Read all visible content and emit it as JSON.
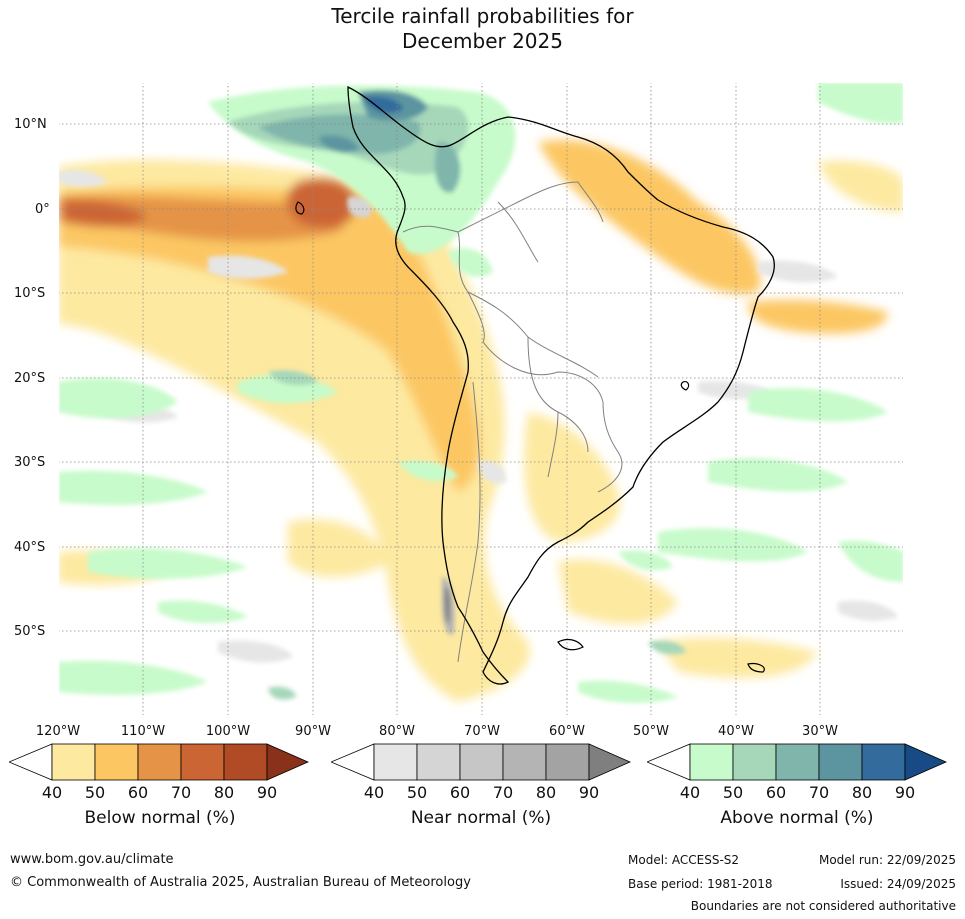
{
  "title": {
    "line1": "Tercile rainfall probabilities for",
    "line2": "December 2025"
  },
  "map": {
    "lat_labels": [
      "10°N",
      "0°",
      "10°S",
      "20°S",
      "30°S",
      "40°S",
      "50°S"
    ],
    "lon_labels": [
      "120°W",
      "110°W",
      "100°W",
      "90°W",
      "80°W",
      "70°W",
      "60°W",
      "50°W",
      "40°W",
      "30°W"
    ],
    "colors": {
      "below": [
        "#fde9a0",
        "#fcc763",
        "#e59447",
        "#cc6534",
        "#b04b26",
        "#8a311b"
      ],
      "near": [
        "#e6e6e6",
        "#d5d5d5",
        "#c6c6c6",
        "#b4b4b4",
        "#a3a3a3",
        "#7f7f7f"
      ],
      "above": [
        "#c8fbcb",
        "#a6d7b9",
        "#7fb5ab",
        "#5c95a0",
        "#336c9c",
        "#184a85"
      ],
      "gridline": "#888888",
      "coastline": "#000000",
      "border": "#808080"
    }
  },
  "colorbars": {
    "below": {
      "title": "Below normal (%)",
      "ticks": [
        "40",
        "50",
        "60",
        "70",
        "80",
        "90"
      ]
    },
    "near": {
      "title": "Near normal (%)",
      "ticks": [
        "40",
        "50",
        "60",
        "70",
        "80",
        "90"
      ]
    },
    "above": {
      "title": "Above normal (%)",
      "ticks": [
        "40",
        "50",
        "60",
        "70",
        "80",
        "90"
      ]
    }
  },
  "footer": {
    "website": "www.bom.gov.au/climate",
    "copyright": "© Commonwealth of Australia 2025, Australian Bureau of Meteorology",
    "model": "Model: ACCESS-S2",
    "base_period": "Base period: 1981-2018",
    "model_run": "Model run: 22/09/2025",
    "issued": "Issued: 24/09/2025",
    "disclaimer": "Boundaries are not considered authoritative"
  }
}
